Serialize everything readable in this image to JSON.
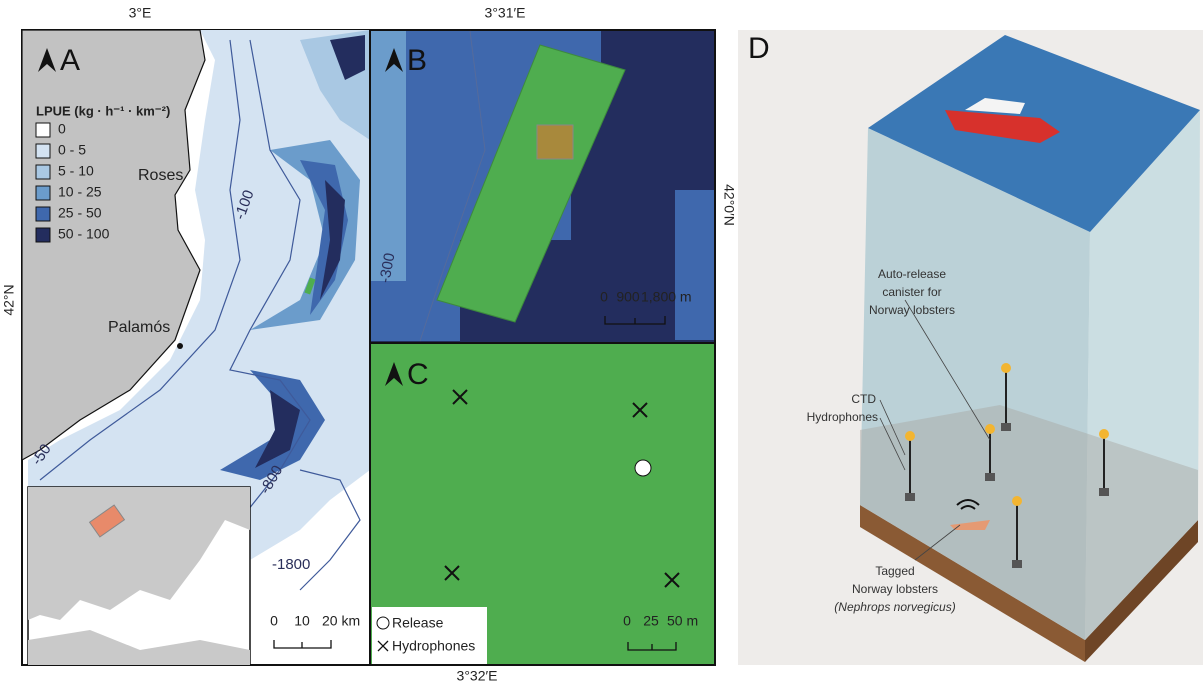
{
  "panels": {
    "a": {
      "label": "A",
      "lon_label": "3°E",
      "lat_label": "42°N",
      "legend_title": "LPUE (kg · h⁻¹ · km⁻²)",
      "legend": [
        {
          "label": "0",
          "color": "#ffffff"
        },
        {
          "label": "0 - 5",
          "color": "#d4e3f2"
        },
        {
          "label": "5 - 10",
          "color": "#a9c8e3"
        },
        {
          "label": "10 - 25",
          "color": "#6b9ccb"
        },
        {
          "label": "25 - 50",
          "color": "#3f68ad"
        },
        {
          "label": "50 - 100",
          "color": "#232d5e"
        }
      ],
      "places": [
        "Roses",
        "Palamós"
      ],
      "contours": [
        "-100",
        "-50",
        "-800",
        "-1800"
      ],
      "scale": [
        "0",
        "10",
        "20 km"
      ]
    },
    "b": {
      "label": "B",
      "lon_label": "3°31′E",
      "lat_label": "42°0′N",
      "contour": "-300",
      "scale": [
        "0",
        "900",
        "1,800 m"
      ]
    },
    "c": {
      "label": "C",
      "lon_label": "3°32′E",
      "legend": [
        "Release",
        "Hydrophones"
      ],
      "scale": [
        "0",
        "25",
        "50 m"
      ]
    },
    "d": {
      "label": "D",
      "callouts": [
        {
          "lines": [
            "Auto-release",
            "canister for",
            "Norway lobsters"
          ]
        },
        {
          "lines": [
            "CTD",
            "Hydrophones"
          ]
        },
        {
          "lines": [
            "Tagged",
            "Norway lobsters",
            "(Nephrops norvegicus)"
          ]
        }
      ]
    }
  }
}
